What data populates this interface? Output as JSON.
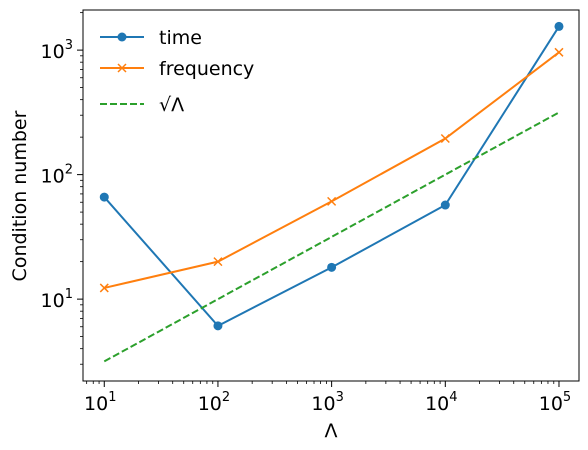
{
  "chart_data": {
    "type": "line",
    "x": [
      10,
      100,
      1000,
      10000,
      100000
    ],
    "x_scale": "log",
    "y_scale": "log",
    "xlim": [
      6.5,
      150000
    ],
    "ylim": [
      2.2,
      2100
    ],
    "xlabel": "Λ",
    "ylabel": "Condition number",
    "x_ticks": [
      {
        "value": 10,
        "base": "10",
        "exp": "1"
      },
      {
        "value": 100,
        "base": "10",
        "exp": "2"
      },
      {
        "value": 1000,
        "base": "10",
        "exp": "3"
      },
      {
        "value": 10000,
        "base": "10",
        "exp": "4"
      },
      {
        "value": 100000,
        "base": "10",
        "exp": "5"
      }
    ],
    "y_ticks": [
      {
        "value": 10,
        "base": "10",
        "exp": "1"
      },
      {
        "value": 100,
        "base": "10",
        "exp": "2"
      },
      {
        "value": 1000,
        "base": "10",
        "exp": "3"
      }
    ],
    "series": [
      {
        "name": "time",
        "values": [
          66,
          6.1,
          18,
          57,
          1550
        ],
        "color": "#1f77b4",
        "marker": "circle",
        "dash": "solid"
      },
      {
        "name": "frequency",
        "values": [
          12.3,
          20,
          61,
          195,
          960
        ],
        "color": "#ff7f0e",
        "marker": "x",
        "dash": "solid"
      },
      {
        "name": "√Λ",
        "values": [
          3.16,
          10,
          31.6,
          100,
          316
        ],
        "color": "#2ca02c",
        "marker": "none",
        "dash": "dashed"
      }
    ],
    "legend": {
      "position": "top-left",
      "labels": [
        "time",
        "frequency",
        "√Λ"
      ]
    },
    "grid": false
  }
}
